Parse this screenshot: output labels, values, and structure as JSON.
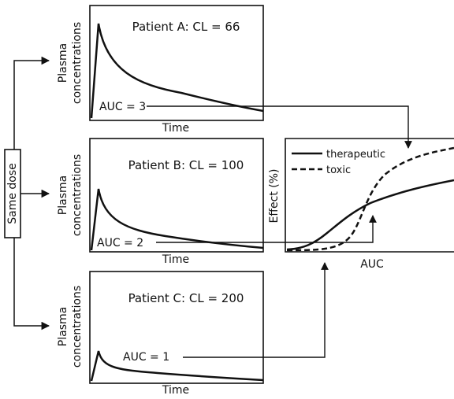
{
  "dose_label": "Same dose",
  "patients": [
    {
      "title": "Patient A: CL = 66",
      "auc_label": "AUC = 3"
    },
    {
      "title": "Patient B: CL = 100",
      "auc_label": "AUC = 2"
    },
    {
      "title": "Patient C: CL = 200",
      "auc_label": "AUC = 1"
    }
  ],
  "pk_axes": {
    "y_label_line1": "Plasma",
    "y_label_line2": "concentrations",
    "x_label": "Time"
  },
  "effect_panel": {
    "y_label": "Effect (%)",
    "x_label": "AUC",
    "legend": [
      {
        "label": "therapeutic",
        "style": "solid"
      },
      {
        "label": "toxic",
        "style": "dashed"
      }
    ]
  },
  "colors": {
    "ink": "#111111",
    "background": "#ffffff"
  }
}
